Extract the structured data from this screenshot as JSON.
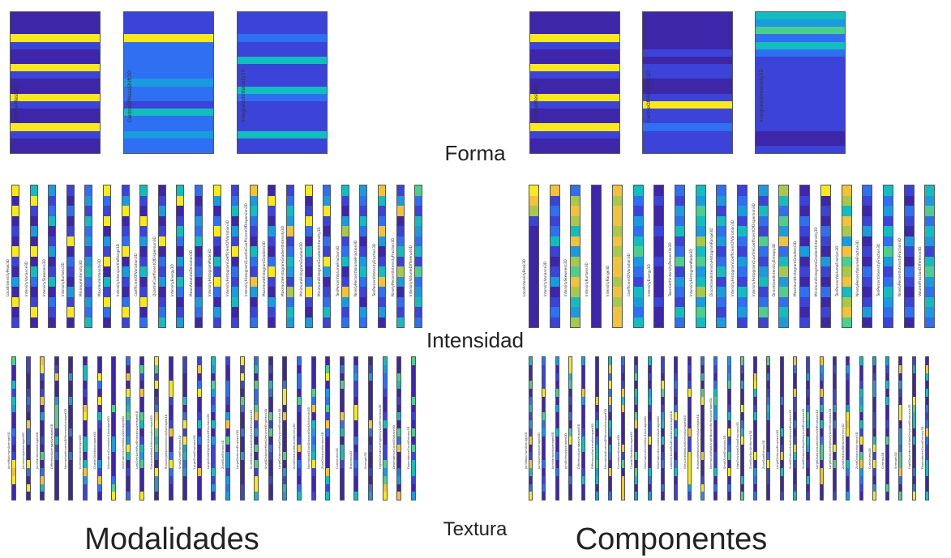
{
  "labels": {
    "forma": "Forma",
    "intensidad": "Intensidad",
    "textura": "Textura",
    "modalidades": "Modalidades",
    "componentes": "Componentes"
  },
  "palette": [
    "#3e26a8",
    "#3b43d8",
    "#2f6ff2",
    "#1a9be0",
    "#13bdbf",
    "#4ccf8e",
    "#a8c84b",
    "#f2c23a",
    "#f9e91b"
  ],
  "panels": [
    {
      "id": "forma-modalidades",
      "features": [
        "VolumeMesh3D",
        "CentreOfMassShift3D",
        "IntegratedIntensity3D"
      ],
      "columns": [
        [
          0,
          0,
          0,
          8,
          1,
          0,
          0,
          8,
          1,
          0,
          0,
          8,
          1,
          0,
          0,
          8,
          1,
          0,
          0
        ],
        [
          1,
          1,
          1,
          8,
          2,
          2,
          2,
          2,
          2,
          3,
          2,
          2,
          1,
          4,
          2,
          2,
          3,
          2,
          2
        ],
        [
          1,
          1,
          1,
          2,
          1,
          1,
          4,
          1,
          1,
          1,
          4,
          2,
          1,
          1,
          1,
          1,
          4,
          1,
          1
        ]
      ]
    },
    {
      "id": "forma-componentes",
      "features": [
        "VolumeMesh3D",
        "CentreOfMassShift3D",
        "IntegratedIntensity3D"
      ],
      "columns": [
        [
          0,
          0,
          0,
          8,
          1,
          0,
          0,
          8,
          1,
          0,
          0,
          8,
          1,
          0,
          0,
          8,
          1,
          0,
          0
        ],
        [
          0,
          0,
          0,
          0,
          0,
          1,
          0,
          1,
          1,
          0,
          0,
          1,
          8,
          1,
          1,
          2,
          1,
          1,
          1
        ],
        [
          4,
          3,
          5,
          2,
          4,
          2,
          1,
          1,
          1,
          1,
          1,
          1,
          1,
          1,
          1,
          1,
          0,
          0,
          1
        ]
      ]
    },
    {
      "id": "intensidad-modalidades",
      "features": [
        "LocalIntensityPeak3D",
        "IntensityVariance3D",
        "IntensitySkewness3D",
        "IntensityKurtosis3D",
        "MinimumIntensity3D",
        "MaximumIntensity3D",
        "IntensityInterquartileRange3D",
        "CoefficientOfVariation3D",
        "QuartileCoefficientOfDispersion3D",
        "IntensityEnergy3D",
        "MeanAbsoluteDeviation3D",
        "IntensityHistogramMode3D",
        "IntensityHistogramCoefficientOfVariation3D",
        "IntensityHistogramQuartileCoefficientOfDispersion3D",
        "MaximumHistogramGradient3D",
        "MaximumHistogramGradientIntensity3D",
        "MinimumHistogramGradient3D",
        "MinimumHistogramGradientIntensity3D",
        "TenPercentVolumeFraction3D",
        "NinetyPercentVolumeFraction3D",
        "TenPercentIntensityFraction3D",
        "NinetyPercentIntensityFraction3D",
        "IntensityVolumeDifference3D"
      ],
      "columns": [
        [
          8,
          0,
          8,
          0,
          1,
          0,
          8,
          1,
          0,
          3,
          0,
          8,
          0,
          1
        ],
        [
          4,
          8,
          1,
          0,
          3,
          0,
          8,
          0,
          4,
          2,
          0,
          1,
          8,
          0
        ],
        [
          3,
          1,
          2,
          4,
          0,
          1,
          3,
          0,
          1,
          4,
          0,
          2,
          1,
          0
        ],
        [
          1,
          0,
          2,
          0,
          1,
          8,
          0,
          2,
          1,
          0,
          3,
          1,
          8,
          0
        ],
        [
          2,
          3,
          1,
          4,
          2,
          3,
          1,
          3,
          4,
          2,
          1,
          3,
          2,
          4
        ],
        [
          8,
          2,
          1,
          8,
          0,
          3,
          1,
          8,
          0,
          4,
          1,
          8,
          2,
          0
        ],
        [
          1,
          3,
          8,
          0,
          1,
          2,
          8,
          0,
          3,
          1,
          0,
          2,
          8,
          1
        ],
        [
          4,
          1,
          0,
          8,
          1,
          3,
          0,
          1,
          4,
          0,
          1,
          8,
          0,
          2
        ],
        [
          0,
          1,
          3,
          0,
          1,
          8,
          0,
          2,
          1,
          3,
          0,
          1,
          2,
          4
        ],
        [
          4,
          8,
          0,
          1,
          4,
          2,
          0,
          3,
          1,
          4,
          2,
          0,
          1,
          3
        ],
        [
          2,
          0,
          1,
          3,
          2,
          4,
          0,
          1,
          2,
          0,
          1,
          3,
          2,
          0
        ],
        [
          8,
          3,
          0,
          2,
          8,
          1,
          0,
          4,
          1,
          8,
          2,
          0,
          3,
          1
        ],
        [
          1,
          2,
          4,
          0,
          3,
          1,
          8,
          0,
          2,
          1,
          3,
          4,
          0,
          1
        ],
        [
          7,
          3,
          4,
          2,
          1,
          0,
          4,
          2,
          1,
          7,
          3,
          0,
          1,
          2
        ],
        [
          0,
          8,
          1,
          0,
          3,
          1,
          0,
          2,
          8,
          1,
          0,
          3,
          1,
          0
        ],
        [
          1,
          2,
          4,
          3,
          7,
          1,
          2,
          4,
          3,
          1,
          6,
          2,
          4,
          3
        ],
        [
          8,
          0,
          1,
          8,
          2,
          0,
          4,
          1,
          0,
          2,
          8,
          1,
          0,
          3
        ],
        [
          2,
          3,
          8,
          1,
          0,
          2,
          1,
          8,
          3,
          0,
          1,
          2,
          4,
          1
        ],
        [
          4,
          1,
          0,
          3,
          6,
          1,
          2,
          4,
          0,
          1,
          7,
          3,
          1,
          2
        ],
        [
          3,
          2,
          1,
          4,
          2,
          0,
          1,
          3,
          4,
          2,
          1,
          0,
          3,
          2
        ],
        [
          7,
          4,
          1,
          2,
          7,
          3,
          0,
          1,
          4,
          7,
          2,
          1,
          3,
          0
        ],
        [
          1,
          3,
          7,
          0,
          1,
          2,
          4,
          1,
          6,
          3,
          0,
          2,
          1,
          4
        ],
        [
          5,
          2,
          1,
          4,
          3,
          2,
          4,
          1,
          5,
          2,
          3,
          4,
          1,
          2
        ]
      ]
    },
    {
      "id": "intensidad-componentes",
      "features": [
        "LocalIntensityPeak3D",
        "IntensityVariance3D",
        "IntensitySkewness3D",
        "IntensityKurtosis3D",
        "IntensityRange3D",
        "CoefficientOfVariation3D",
        "IntensityEnergy3D",
        "TwentiethIntensityPercentile3D",
        "IntensityHistogramMode3D",
        "DiscretisedIntensityHistogramRange3D",
        "IntensityHistogramCoefficientOfVariation3D",
        "IntensityHistogramQuartileCoefficientOfDispersion3D",
        "DiscretisedIntensityEntropy3D",
        "MaximumHistogramGradient3D",
        "MinimumHistogramGradientIntensity3D",
        "TenPercentVolumeFraction3D",
        "NinetyPercentVolumeFraction3D",
        "TenPercentIntensityFraction3D",
        "NinetyPercentIntensityFraction3D",
        "VolumeFractionDifference3D"
      ],
      "columns": [
        [
          8,
          7,
          6,
          1,
          0,
          0,
          0,
          0,
          0,
          0,
          0,
          0,
          0,
          0
        ],
        [
          7,
          1,
          2,
          1,
          2,
          4,
          1,
          0,
          1,
          3,
          0,
          1,
          2,
          1
        ],
        [
          2,
          6,
          7,
          6,
          4,
          7,
          3,
          6,
          5,
          7,
          6,
          4,
          3,
          6
        ],
        [
          0,
          0,
          0,
          0,
          0,
          0,
          0,
          0,
          0,
          0,
          0,
          0,
          0,
          0
        ],
        [
          7,
          6,
          7,
          7,
          6,
          7,
          6,
          7,
          7,
          6,
          7,
          6,
          7,
          7
        ],
        [
          4,
          2,
          1,
          3,
          2,
          4,
          5,
          3,
          2,
          1,
          4,
          3,
          2,
          4
        ],
        [
          0,
          1,
          0,
          0,
          1,
          0,
          0,
          1,
          0,
          0,
          0,
          1,
          0,
          0
        ],
        [
          2,
          1,
          3,
          2,
          4,
          1,
          2,
          5,
          1,
          3,
          2,
          1,
          4,
          2
        ],
        [
          4,
          3,
          5,
          4,
          3,
          6,
          4,
          5,
          3,
          4,
          6,
          3,
          5,
          4
        ],
        [
          2,
          3,
          1,
          4,
          2,
          3,
          1,
          2,
          4,
          1,
          3,
          2,
          1,
          3
        ],
        [
          1,
          2,
          3,
          1,
          4,
          2,
          1,
          3,
          2,
          1,
          4,
          2,
          3,
          1
        ],
        [
          3,
          1,
          4,
          2,
          1,
          5,
          2,
          1,
          3,
          4,
          1,
          2,
          5,
          1
        ],
        [
          6,
          4,
          2,
          5,
          3,
          7,
          2,
          4,
          6,
          3,
          5,
          2,
          4,
          3
        ],
        [
          0,
          1,
          0,
          2,
          1,
          0,
          3,
          0,
          1,
          0,
          2,
          1,
          0,
          1
        ],
        [
          8,
          0,
          1,
          0,
          2,
          1,
          0,
          3,
          1,
          0,
          2,
          0,
          1,
          0
        ],
        [
          7,
          6,
          4,
          7,
          6,
          3,
          7,
          5,
          6,
          7,
          4,
          6,
          7,
          5
        ],
        [
          2,
          1,
          0,
          1,
          3,
          0,
          1,
          0,
          2,
          1,
          0,
          1,
          3,
          0
        ],
        [
          4,
          2,
          3,
          1,
          4,
          2,
          5,
          3,
          1,
          2,
          4,
          3,
          2,
          1
        ],
        [
          1,
          0,
          2,
          1,
          0,
          3,
          1,
          0,
          2,
          1,
          0,
          1,
          2,
          0
        ],
        [
          4,
          3,
          5,
          2,
          4,
          3,
          1,
          4,
          5,
          3,
          2,
          4,
          3,
          2
        ]
      ]
    },
    {
      "id": "textura-modalidades",
      "features": [
        "JointMaximumAverage3D",
        "JointAverageAveraged3D",
        "JointVarianceAveraged3D",
        "DifferenceAverageAveraged3D",
        "NormalisedInverseDifferenceAveraged3D",
        "CorrelationAveraged3D",
        "ClusterShadeAveraged3D",
        "InformationCorrelation1Averaged3D",
        "InformationCorrelation2Averaged3D",
        "LowGreyLevelRunEmphasisAveraged3D",
        "GreyLevelNonUniformityAveraged3D",
        "RunLengthNonUniformityAveraged3D",
        "SmallZoneEmphasis3D",
        "LargeZoneEmphasis3D",
        "LargeZoneHighGreyLevelEmphasis3D",
        "ZoneSizeEntropy3D",
        "LargeDistanceEmphasis3D",
        "SmallDistanceLowGreyLevelEmphasis3D",
        "SmallDistanceHighGreyLevelEmphasis3D",
        "LargeDistanceHighGreyLevelEmphasis3D",
        "ZoneDistanceNonUniformity3D",
        "NormalisedZoneDistanceNonUniformity3D",
        "ZoneDistanceVariance3D",
        "Coarseness3D",
        "Busyness3D",
        "Strength3D",
        "HighDependenceHighGreyLevelEmphasis3D",
        "DependenceCountDistance3D",
        "DependenceCountEntropy3D"
      ],
      "columns": []
    },
    {
      "id": "textura-componentes",
      "features": [
        "JointMaximumAverage3D",
        "JointAverageAveraged3D",
        "JointVarianceAveraged3D",
        "JointEntropyAveraged3D",
        "DifferenceAverageAveraged3D",
        "DifferenceVarianceAveraged3D",
        "NormalisedInverseDifferenceAveraged3D",
        "CorrelationAveraged3D",
        "ClusterShadeAveraged3D",
        "InformationCorrelation1Averaged3D",
        "InformationCorrelation2Averaged3D",
        "LowGreyLevelRunEmphasisAveraged3D",
        "GreyLevelNonUniformityAveraged3D",
        "RunLengthNonUniformityAveraged3D",
        "NormalisedRunLengthNonUniformityAveraged3D",
        "SmallZoneEmphasis3D",
        "HighGreyLevelZoneEmphasis3D",
        "ZoneSizeNonUniformity3D",
        "ZoneSizeEntropy3D",
        "LargeDistanceEmphasis3D",
        "SmallDistanceLowGreyLevelEmphasis3D",
        "SmallDistanceHighGreyLevelEmphasis3D",
        "LargeDistanceLowGreyLevelEmphasis3D",
        "LargeDistanceHighGreyLevelEmphasis3D",
        "ZoneDistanceNonUniformity3D",
        "ZoneDistanceVariance3D",
        "Coarseness3D",
        "Contrast3D",
        "Strength3D",
        "HighDependenceHighGreyLevelEmphasis3D",
        "DependenceCountEntropy3D"
      ],
      "columns": []
    }
  ]
}
